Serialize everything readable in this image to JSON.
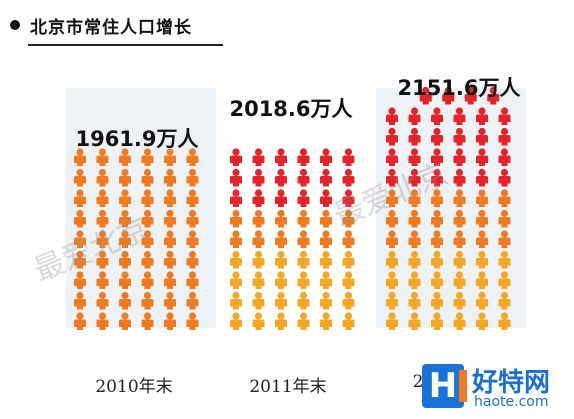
{
  "title": "北京市常住人口增长",
  "chart_data": {
    "type": "bar",
    "title": "北京市常住人口增长",
    "categories": [
      "2010年末",
      "2011年末",
      "2012年末"
    ],
    "values": [
      1961.9,
      2018.6,
      2151.6
    ],
    "value_labels": [
      "1961.9万人",
      "2018.6万人",
      "2151.6万人"
    ],
    "unit": "万人",
    "grid": false,
    "legend": "none"
  },
  "visible_category_labels": [
    "2010年末",
    "2011年末",
    "2"
  ],
  "watermark": [
    "最爱北京",
    "最爱北京"
  ],
  "logo": {
    "icon": "H",
    "name": "好特网",
    "domain": "haote.com"
  },
  "colors": {
    "orange": "#f07a1f",
    "yellow_orange": "#f5a623",
    "red": "#e6232a",
    "panel": "#dfe7ef"
  }
}
